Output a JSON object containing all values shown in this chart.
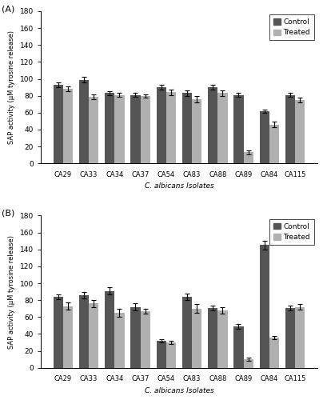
{
  "categories": [
    "CA29",
    "CA33",
    "CA34",
    "CA37",
    "CA54",
    "CA83",
    "CA88",
    "CA89",
    "CA84",
    "CA115"
  ],
  "panel_A": {
    "control": [
      93,
      99,
      83,
      81,
      90,
      83,
      90,
      81,
      62,
      81
    ],
    "treated": [
      88,
      79,
      81,
      80,
      84,
      76,
      83,
      13,
      46,
      75
    ],
    "control_err": [
      3,
      3,
      2,
      2,
      3,
      3,
      3,
      2,
      2,
      2
    ],
    "treated_err": [
      3,
      3,
      2,
      2,
      3,
      4,
      3,
      2,
      3,
      3
    ]
  },
  "panel_B": {
    "control": [
      84,
      86,
      91,
      72,
      32,
      84,
      71,
      49,
      145,
      71
    ],
    "treated": [
      73,
      76,
      65,
      67,
      30,
      70,
      68,
      10,
      36,
      72
    ],
    "control_err": [
      3,
      4,
      4,
      4,
      2,
      4,
      3,
      3,
      5,
      3
    ],
    "treated_err": [
      4,
      4,
      5,
      3,
      2,
      5,
      4,
      2,
      2,
      3
    ]
  },
  "ylabel": "SAP activity (μM tyrosine release)",
  "xlabel": "C. albicans Isolates",
  "ylim": [
    0,
    180
  ],
  "yticks": [
    0,
    20,
    40,
    60,
    80,
    100,
    120,
    140,
    160,
    180
  ],
  "control_color": "#555555",
  "treated_color": "#b0b0b0",
  "bar_width": 0.38,
  "label_A": "(A)",
  "label_B": "(B)",
  "legend_labels": [
    "Control",
    "Treated"
  ],
  "figsize": [
    4.04,
    5.0
  ],
  "dpi": 100
}
